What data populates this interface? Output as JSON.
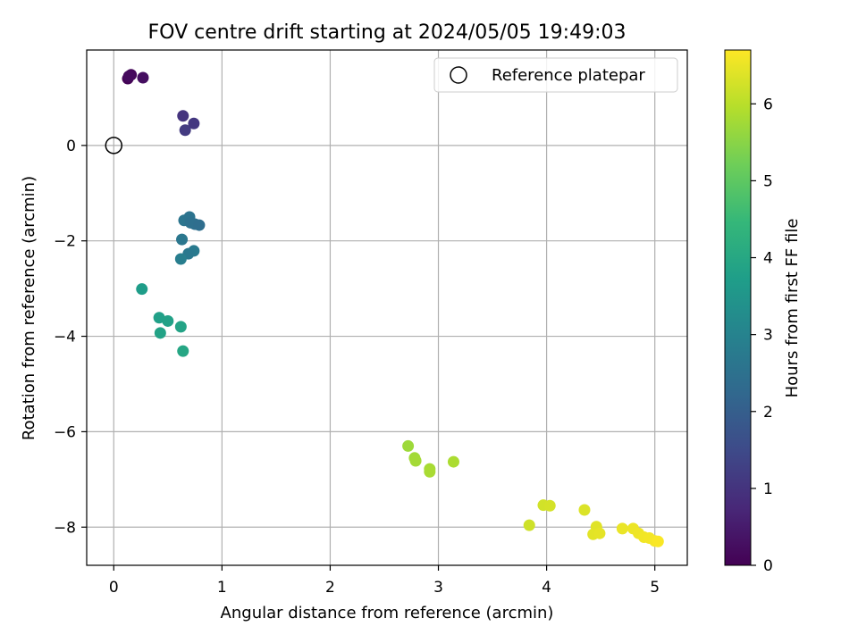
{
  "chart_data": {
    "type": "scatter",
    "title": "FOV centre drift starting at 2024/05/05 19:49:03",
    "xlabel": "Angular distance from reference (arcmin)",
    "ylabel": "Rotation from reference (arcmin)",
    "xlim": [
      -0.25,
      5.3
    ],
    "ylim": [
      -8.8,
      2.0
    ],
    "x_ticks": [
      0,
      1,
      2,
      3,
      4,
      5
    ],
    "y_ticks": [
      0,
      -2,
      -4,
      -6,
      -8
    ],
    "x_tick_labels": [
      "0",
      "1",
      "2",
      "3",
      "4",
      "5"
    ],
    "y_tick_labels": [
      "0",
      "−2",
      "−4",
      "−6",
      "−8"
    ],
    "grid": true,
    "legend": {
      "placement": "top-right",
      "label": "Reference platepar"
    },
    "reference_point": {
      "x": 0,
      "y": 0
    },
    "colorbar": {
      "label": "Hours from first FF file",
      "colormap": "viridis",
      "range": [
        0,
        6.7
      ],
      "ticks": [
        0,
        1,
        2,
        3,
        4,
        5,
        6
      ],
      "tick_labels": [
        "0",
        "1",
        "2",
        "3",
        "4",
        "5",
        "6"
      ]
    },
    "points": [
      {
        "x": 0.13,
        "y": 1.4,
        "hours": 0.05
      },
      {
        "x": 0.16,
        "y": 1.48,
        "hours": 0.12
      },
      {
        "x": 0.14,
        "y": 1.45,
        "hours": 0.18
      },
      {
        "x": 0.27,
        "y": 1.42,
        "hours": 0.25
      },
      {
        "x": 0.64,
        "y": 0.62,
        "hours": 1.0
      },
      {
        "x": 0.74,
        "y": 0.46,
        "hours": 1.08
      },
      {
        "x": 0.66,
        "y": 0.32,
        "hours": 1.15
      },
      {
        "x": 0.65,
        "y": -1.57,
        "hours": 2.6
      },
      {
        "x": 0.7,
        "y": -1.5,
        "hours": 2.55
      },
      {
        "x": 0.71,
        "y": -1.62,
        "hours": 2.5
      },
      {
        "x": 0.75,
        "y": -1.65,
        "hours": 2.45
      },
      {
        "x": 0.79,
        "y": -1.67,
        "hours": 2.4
      },
      {
        "x": 0.63,
        "y": -1.97,
        "hours": 2.65
      },
      {
        "x": 0.74,
        "y": -2.21,
        "hours": 2.75
      },
      {
        "x": 0.69,
        "y": -2.27,
        "hours": 2.7
      },
      {
        "x": 0.62,
        "y": -2.38,
        "hours": 2.85
      },
      {
        "x": 0.26,
        "y": -3.01,
        "hours": 3.7
      },
      {
        "x": 0.42,
        "y": -3.61,
        "hours": 3.78
      },
      {
        "x": 0.5,
        "y": -3.68,
        "hours": 3.82
      },
      {
        "x": 0.62,
        "y": -3.8,
        "hours": 3.88
      },
      {
        "x": 0.43,
        "y": -3.93,
        "hours": 3.85
      },
      {
        "x": 0.64,
        "y": -4.31,
        "hours": 3.95
      },
      {
        "x": 2.72,
        "y": -6.3,
        "hours": 5.7
      },
      {
        "x": 2.78,
        "y": -6.55,
        "hours": 5.75
      },
      {
        "x": 2.79,
        "y": -6.61,
        "hours": 5.78
      },
      {
        "x": 2.92,
        "y": -6.78,
        "hours": 5.8
      },
      {
        "x": 2.92,
        "y": -6.84,
        "hours": 5.83
      },
      {
        "x": 3.14,
        "y": -6.63,
        "hours": 5.85
      },
      {
        "x": 3.84,
        "y": -7.96,
        "hours": 6.2
      },
      {
        "x": 3.97,
        "y": -7.54,
        "hours": 6.25
      },
      {
        "x": 4.03,
        "y": -7.55,
        "hours": 6.28
      },
      {
        "x": 4.35,
        "y": -7.64,
        "hours": 6.35
      },
      {
        "x": 4.46,
        "y": -7.99,
        "hours": 6.4
      },
      {
        "x": 4.43,
        "y": -8.15,
        "hours": 6.42
      },
      {
        "x": 4.49,
        "y": -8.13,
        "hours": 6.45
      },
      {
        "x": 4.7,
        "y": -8.03,
        "hours": 6.5
      },
      {
        "x": 4.8,
        "y": -8.03,
        "hours": 6.52
      },
      {
        "x": 4.85,
        "y": -8.13,
        "hours": 6.55
      },
      {
        "x": 4.9,
        "y": -8.21,
        "hours": 6.58
      },
      {
        "x": 4.95,
        "y": -8.23,
        "hours": 6.6
      },
      {
        "x": 5.0,
        "y": -8.29,
        "hours": 6.63
      },
      {
        "x": 5.03,
        "y": -8.3,
        "hours": 6.66
      }
    ]
  }
}
